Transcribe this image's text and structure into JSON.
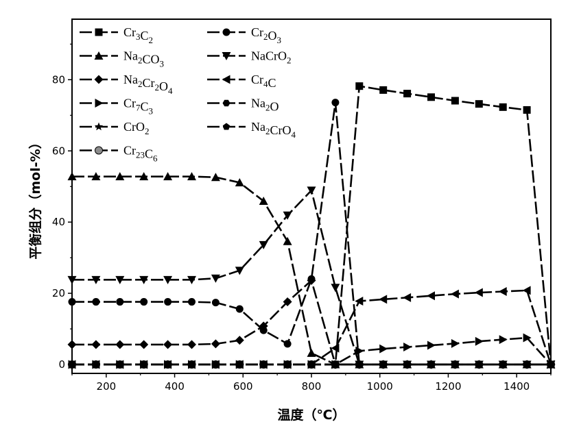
{
  "chart_data": {
    "type": "line",
    "xlabel": "温度（℃）",
    "ylabel": "平衡组分（mol-%）",
    "xlim": [
      100,
      1500
    ],
    "ylim": [
      -2.5,
      97
    ],
    "xticks": [
      200,
      400,
      600,
      800,
      1000,
      1200,
      1400
    ],
    "yticks": [
      0,
      20,
      40,
      60,
      80
    ],
    "grid": false,
    "legend_position": "top-left",
    "x": [
      100,
      170,
      240,
      310,
      380,
      450,
      520,
      590,
      660,
      730,
      800,
      870,
      940,
      1010,
      1080,
      1150,
      1220,
      1290,
      1360,
      1430,
      1500
    ],
    "series": [
      {
        "name": "Cr3C2",
        "label": {
          "base1": "Cr",
          "sub1": "3",
          "base2": "C",
          "sub2": "2"
        },
        "marker": "square",
        "values": [
          0,
          0,
          0,
          0,
          0,
          0,
          0,
          0,
          0,
          0,
          0,
          0,
          78.2,
          77.1,
          76.1,
          75.1,
          74.1,
          73.2,
          72.3,
          71.5,
          0
        ]
      },
      {
        "name": "Cr2O3",
        "label": {
          "base1": "Cr",
          "sub1": "2",
          "base2": "O",
          "sub2": "3"
        },
        "marker": "circle",
        "values": [
          17.6,
          17.6,
          17.6,
          17.6,
          17.6,
          17.6,
          17.4,
          15.6,
          9.6,
          5.8,
          24,
          73.6,
          0,
          0,
          0,
          0,
          0,
          0,
          0,
          0,
          0
        ]
      },
      {
        "name": "Na2CO3",
        "label": {
          "base1": "Na",
          "sub1": "2",
          "base2": "CO",
          "sub2": "3"
        },
        "marker": "triangle-up",
        "values": [
          52.8,
          52.8,
          52.8,
          52.8,
          52.8,
          52.8,
          52.6,
          51.1,
          45.9,
          34.6,
          3.2,
          0,
          0,
          0,
          0,
          0,
          0,
          0,
          0,
          0,
          0
        ]
      },
      {
        "name": "NaCrO2",
        "label": {
          "base1": "NaCrO",
          "sub1": "2",
          "base2": "",
          "sub2": ""
        },
        "marker": "triangle-down",
        "values": [
          23.8,
          23.8,
          23.8,
          23.8,
          23.8,
          23.8,
          24.2,
          26.4,
          33.6,
          41.9,
          48.9,
          21.6,
          0,
          0,
          0,
          0,
          0,
          0,
          0,
          0,
          0
        ]
      },
      {
        "name": "Na2Cr2O4",
        "label": {
          "base1": "Na",
          "sub1": "2",
          "base2": "Cr",
          "sub2": "2",
          "base3": "O",
          "sub3": "4"
        },
        "marker": "diamond",
        "values": [
          5.6,
          5.6,
          5.6,
          5.6,
          5.6,
          5.6,
          5.8,
          6.8,
          10.8,
          17.6,
          23.6,
          0,
          0,
          0,
          0,
          0,
          0,
          0,
          0,
          0,
          0
        ]
      },
      {
        "name": "Cr4C",
        "label": {
          "base1": "Cr",
          "sub1": "4",
          "base2": "C",
          "sub2": ""
        },
        "marker": "triangle-left",
        "values": [
          0,
          0,
          0,
          0,
          0,
          0,
          0,
          0,
          0,
          0,
          0,
          4.6,
          17.8,
          18.3,
          18.8,
          19.3,
          19.8,
          20.2,
          20.5,
          20.8,
          0
        ]
      },
      {
        "name": "Cr7C3",
        "label": {
          "base1": "Cr",
          "sub1": "7",
          "base2": "C",
          "sub2": "3"
        },
        "marker": "triangle-right",
        "values": [
          0,
          0,
          0,
          0,
          0,
          0,
          0,
          0,
          0,
          0,
          0,
          0,
          3.8,
          4.4,
          4.9,
          5.4,
          5.9,
          6.5,
          7,
          7.5,
          0
        ]
      },
      {
        "name": "Na2O",
        "label": {
          "base1": "Na",
          "sub1": "2",
          "base2": "O",
          "sub2": ""
        },
        "marker": "hexagon",
        "values": [
          0,
          0,
          0,
          0,
          0,
          0,
          0,
          0,
          0,
          0,
          0,
          0,
          0,
          0,
          0,
          0,
          0,
          0,
          0,
          0,
          0
        ]
      },
      {
        "name": "CrO2",
        "label": {
          "base1": "CrO",
          "sub1": "2",
          "base2": "",
          "sub2": ""
        },
        "marker": "star",
        "values": [
          0,
          0,
          0,
          0,
          0,
          0,
          0,
          0,
          0,
          0,
          0,
          0,
          0,
          0,
          0,
          0,
          0,
          0,
          0,
          0,
          0
        ]
      },
      {
        "name": "Na2CrO4",
        "label": {
          "base1": "Na",
          "sub1": "2",
          "base2": "CrO",
          "sub2": "4"
        },
        "marker": "pentagon",
        "values": [
          0,
          0,
          0,
          0,
          0,
          0,
          0,
          0,
          0,
          0,
          0,
          0,
          0,
          0,
          0,
          0,
          0,
          0,
          0,
          0,
          0
        ]
      },
      {
        "name": "Cr23C6",
        "label": {
          "base1": "Cr",
          "sub1": "23",
          "base2": "C",
          "sub2": "6"
        },
        "marker": "circle-gray",
        "values": [
          0,
          0,
          0,
          0,
          0,
          0,
          0,
          0,
          0,
          0,
          0,
          0,
          0,
          0,
          0,
          0,
          0,
          0,
          0,
          0,
          0
        ]
      }
    ]
  }
}
